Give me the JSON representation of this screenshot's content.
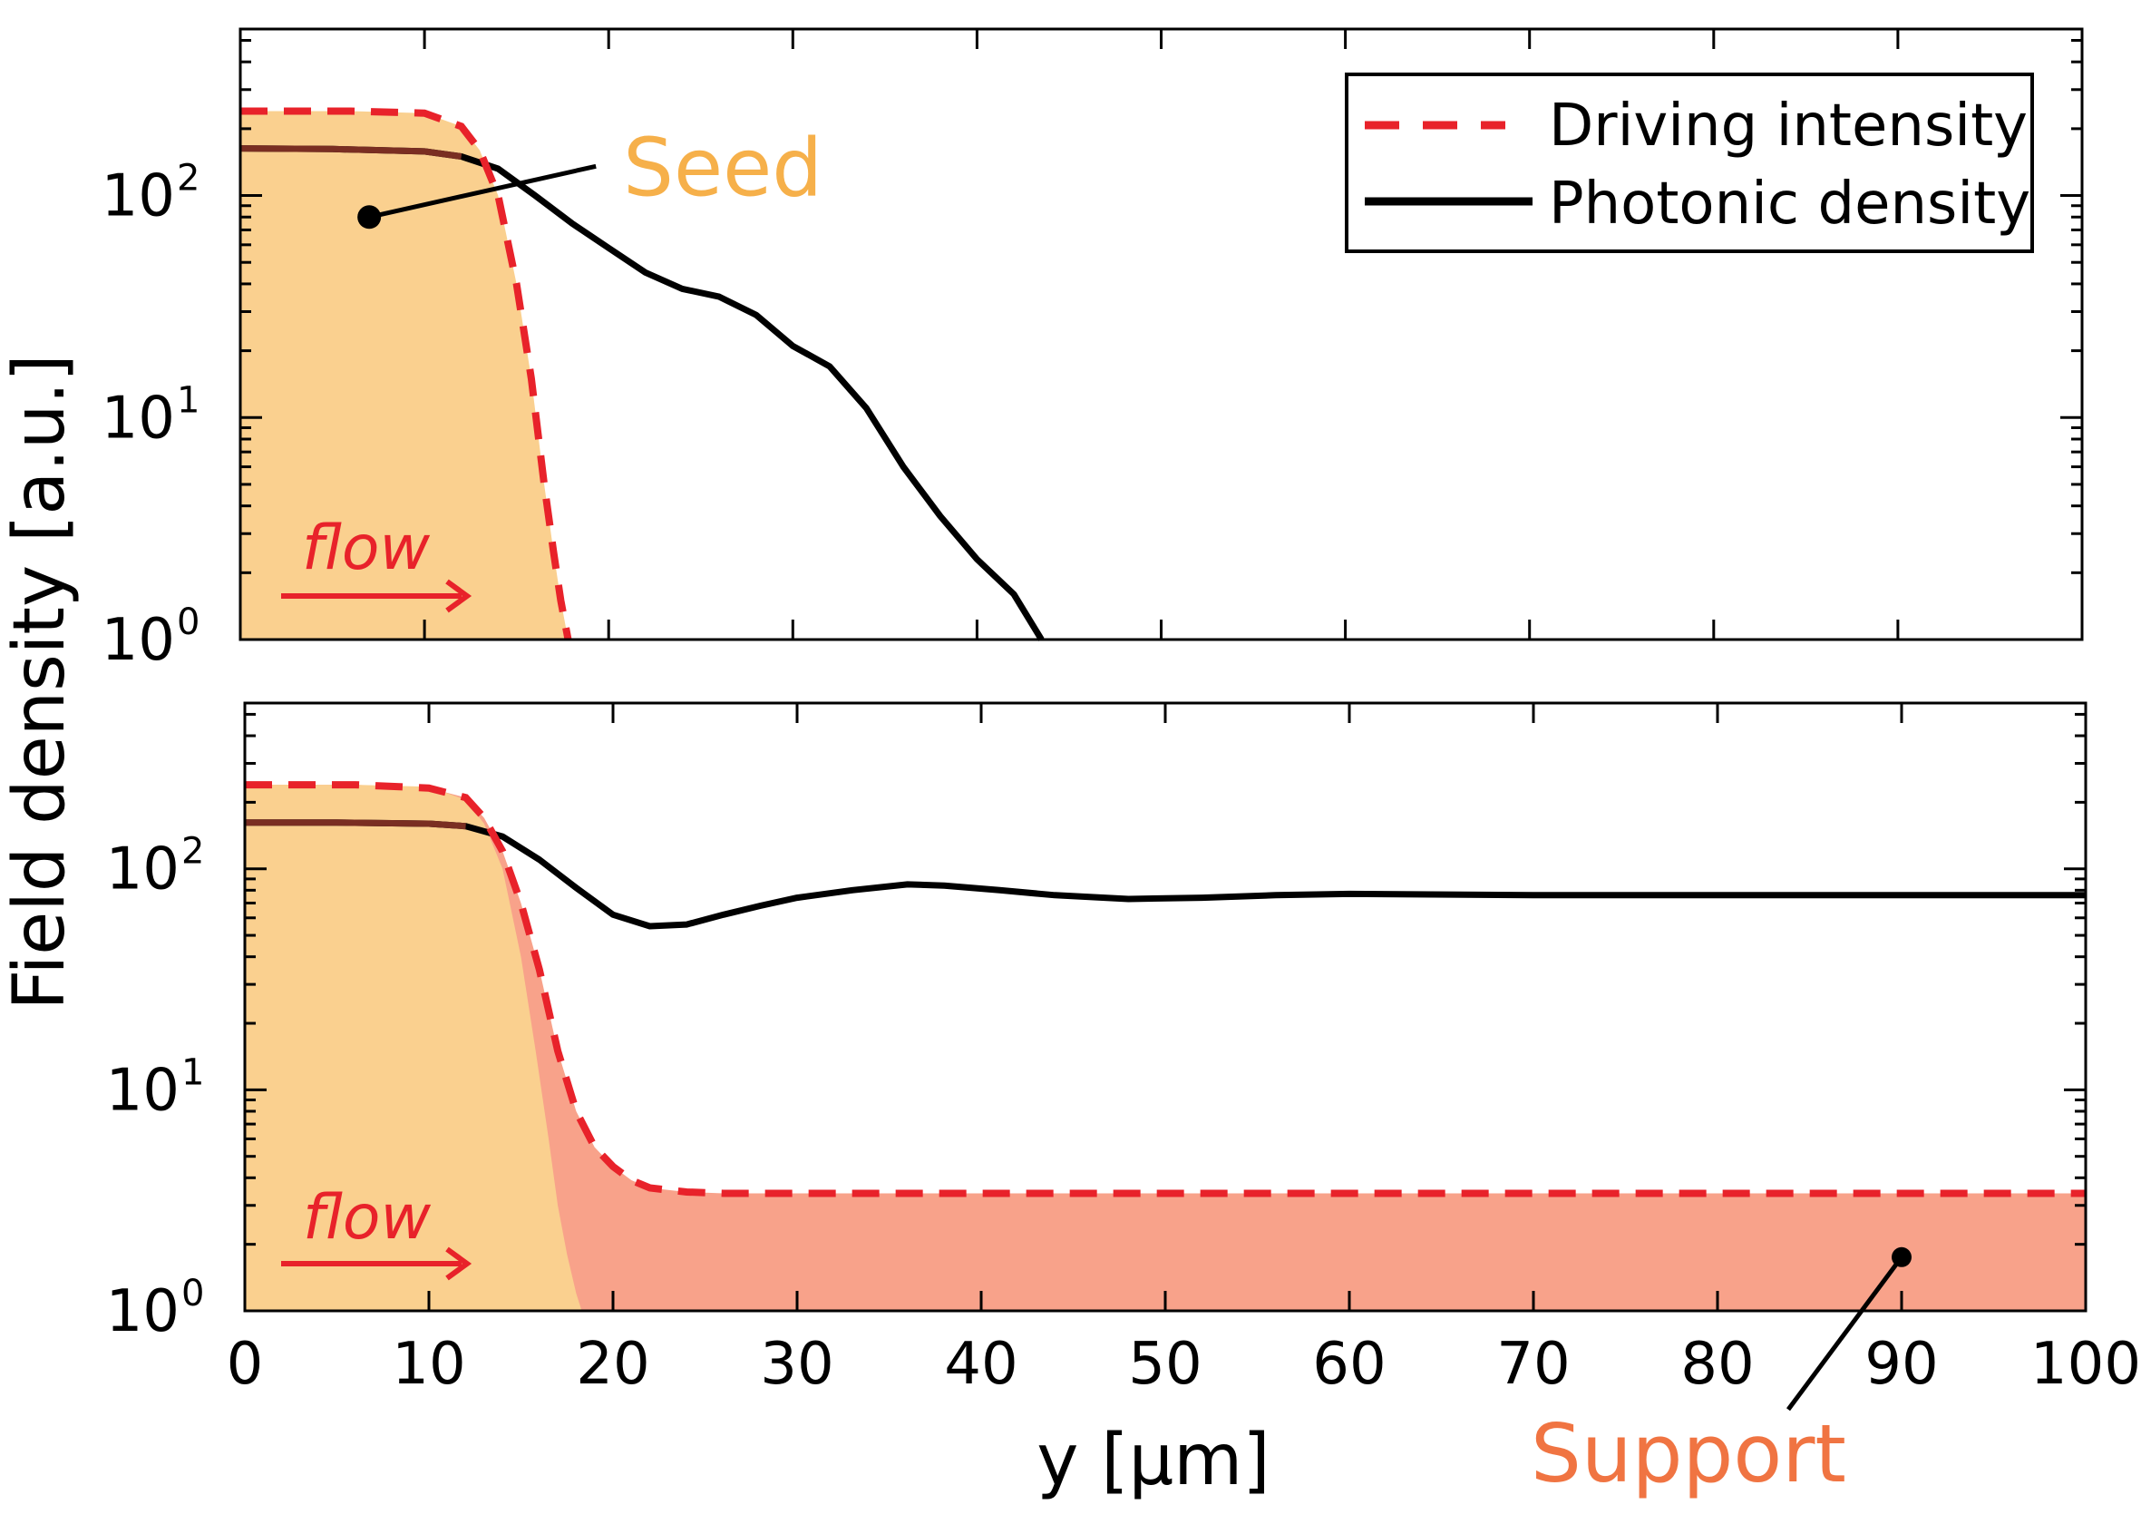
{
  "chart_data": [
    {
      "panel": "top",
      "type": "line",
      "y_scale": "log",
      "xlim": [
        0,
        100
      ],
      "ylim_exponents": [
        0,
        2.75
      ],
      "y_ticks": [
        {
          "value": 1,
          "base": "10",
          "exp": "0"
        },
        {
          "value": 10,
          "base": "10",
          "exp": "1"
        },
        {
          "value": 100,
          "base": "10",
          "exp": "2"
        }
      ],
      "series": [
        {
          "name": "Driving intensity",
          "style": "dashed",
          "color": "#e8222a",
          "x": [
            0,
            6,
            10,
            12,
            13,
            14,
            15,
            15.8,
            16.5,
            17,
            17.4,
            17.8
          ],
          "y": [
            240,
            240,
            235,
            205,
            160,
            100,
            40,
            15,
            5,
            2.5,
            1.5,
            1.0
          ]
        },
        {
          "name": "Photonic density",
          "style": "solid",
          "color": "#000000",
          "x": [
            0,
            5,
            10,
            12,
            14,
            16,
            18,
            20,
            22,
            24,
            26,
            28,
            30,
            32,
            34,
            36,
            38,
            40,
            42,
            43.5
          ],
          "y": [
            163,
            162,
            158,
            150,
            132,
            100,
            75,
            58,
            45,
            38,
            35,
            29,
            21,
            17,
            11,
            6,
            3.6,
            2.3,
            1.6,
            1.0
          ]
        }
      ],
      "seed_fill": {
        "label": "Seed",
        "color": "#fad08f",
        "x": [
          0,
          6,
          10,
          12,
          13,
          14,
          15,
          15.8,
          16.5,
          17,
          17.4,
          17.8
        ],
        "y": [
          240,
          240,
          235,
          205,
          160,
          100,
          40,
          15,
          5,
          2.5,
          1.5,
          1.0
        ]
      }
    },
    {
      "panel": "bottom",
      "type": "line",
      "y_scale": "log",
      "xlim": [
        0,
        100
      ],
      "ylim_exponents": [
        0,
        2.75
      ],
      "xlabel": "y [μm]",
      "x_ticks": [
        0,
        10,
        20,
        30,
        40,
        50,
        60,
        70,
        80,
        90,
        100
      ],
      "y_ticks": [
        {
          "value": 1,
          "base": "10",
          "exp": "0"
        },
        {
          "value": 10,
          "base": "10",
          "exp": "1"
        },
        {
          "value": 100,
          "base": "10",
          "exp": "2"
        }
      ],
      "series": [
        {
          "name": "Driving intensity",
          "style": "dashed",
          "color": "#e8222a",
          "x": [
            0,
            6,
            10,
            12,
            13,
            14,
            15,
            16,
            17,
            18,
            19,
            20,
            21,
            22,
            24,
            26,
            30,
            40,
            60,
            80,
            100
          ],
          "y": [
            240,
            240,
            232,
            210,
            170,
            120,
            70,
            35,
            15,
            8,
            5.5,
            4.5,
            3.9,
            3.6,
            3.45,
            3.4,
            3.4,
            3.4,
            3.4,
            3.4,
            3.4
          ]
        },
        {
          "name": "Photonic density",
          "style": "solid",
          "color": "#000000",
          "x": [
            0,
            5,
            10,
            12,
            14,
            16,
            18,
            20,
            22,
            24,
            26,
            28,
            30,
            33,
            36,
            38,
            41,
            44,
            48,
            52,
            56,
            60,
            70,
            80,
            90,
            100
          ],
          "y": [
            162,
            162,
            160,
            156,
            140,
            110,
            82,
            62,
            55,
            56,
            62,
            68,
            74,
            80,
            85,
            84,
            80,
            76,
            73,
            74,
            76,
            77,
            76,
            76,
            76,
            76
          ]
        }
      ],
      "seed_fill": {
        "label": "Seed",
        "color": "#fad08f",
        "x": [
          0,
          6,
          10,
          12,
          13,
          14,
          15,
          15.8,
          16.5,
          17,
          17.5,
          18,
          18.3
        ],
        "y": [
          240,
          240,
          235,
          205,
          160,
          100,
          40,
          15,
          6,
          3,
          1.8,
          1.2,
          1.0
        ]
      },
      "support_fill": {
        "label": "Support",
        "color": "#f8a28a",
        "x": [
          0,
          6,
          10,
          12,
          13,
          14,
          15,
          16,
          17,
          18,
          19,
          20,
          21,
          22,
          24,
          26,
          30,
          40,
          60,
          80,
          100
        ],
        "y": [
          240,
          240,
          232,
          210,
          170,
          120,
          70,
          35,
          15,
          8,
          5.5,
          4.5,
          3.9,
          3.6,
          3.45,
          3.4,
          3.4,
          3.4,
          3.4,
          3.4,
          3.4
        ]
      }
    }
  ],
  "ylabel": "Field density [a.u.]",
  "legend": [
    {
      "label": "Driving intensity",
      "style": "dashed",
      "color": "#e8222a"
    },
    {
      "label": "Photonic density",
      "style": "solid",
      "color": "#000000"
    }
  ],
  "annotations": {
    "seed": {
      "text": "Seed",
      "color": "#f6b04a",
      "point_x": 7,
      "point_y": 80
    },
    "support": {
      "text": "Support",
      "color": "#f07442",
      "point_x": 90,
      "point_y": 1.75
    },
    "flow_top": {
      "text": "flow",
      "color": "#e8222a"
    },
    "flow_bottom": {
      "text": "flow",
      "color": "#e8222a"
    }
  },
  "colors": {
    "driving": "#e8222a",
    "photonic": "#000000",
    "seed_fill": "#fad08f",
    "support_fill": "#f8a28a",
    "seed_overlap_line": "#7a2e22"
  }
}
